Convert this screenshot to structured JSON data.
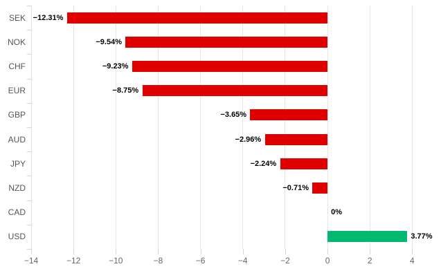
{
  "chart_data": {
    "type": "bar",
    "orientation": "horizontal",
    "title": "",
    "xlabel": "",
    "ylabel": "",
    "legend": false,
    "grid": true,
    "categories": [
      "SEK",
      "NOK",
      "CHF",
      "EUR",
      "GBP",
      "AUD",
      "JPY",
      "NZD",
      "CAD",
      "USD"
    ],
    "values": [
      -12.31,
      -9.54,
      -9.23,
      -8.75,
      -3.65,
      -2.96,
      -2.24,
      -0.71,
      0,
      3.77
    ],
    "value_labels": [
      "−12.31%",
      "−9.54%",
      "−9.23%",
      "−8.75%",
      "−3.65%",
      "−2.96%",
      "−2.24%",
      "−0.71%",
      "0%",
      "3.77%"
    ],
    "x_ticks": [
      -14,
      -12,
      -10,
      -8,
      -6,
      -4,
      -2,
      0,
      2,
      4
    ],
    "x_tick_labels": [
      "−14",
      "−12",
      "−10",
      "−8",
      "−6",
      "−4",
      "−2",
      "0",
      "2",
      "4"
    ],
    "xlim": [
      -14,
      4.87
    ],
    "colors": {
      "negative": "#e00000",
      "positive": "#00b96e"
    }
  },
  "theme": {
    "background": "#ffffff",
    "grid_color": "#e6e6e6",
    "axis_line_color": "#ccd6eb",
    "tick_color": "#ccd6eb",
    "category_label_color": "#555555",
    "axis_label_color": "#666666",
    "data_label_color": "#000000"
  }
}
